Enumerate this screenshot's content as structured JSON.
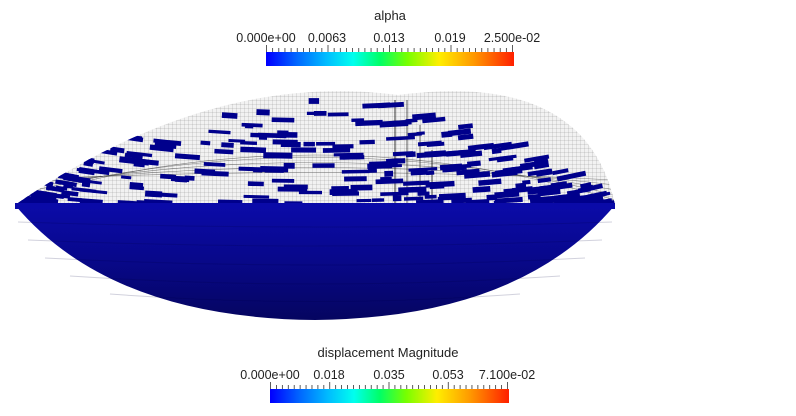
{
  "legends": {
    "alpha": {
      "title": "alpha",
      "ticks": [
        "0.000e+00",
        "0.0063",
        "0.013",
        "0.019",
        "2.500e-02"
      ]
    },
    "displacement": {
      "title": "displacement Magnitude",
      "ticks": [
        "0.000e+00",
        "0.018",
        "0.035",
        "0.053",
        "7.100e-02"
      ]
    }
  },
  "colormap": {
    "low": "#0000ff",
    "high": "#ff2200"
  },
  "surface_color": "#0a0a96",
  "patch_color": "#00008c"
}
